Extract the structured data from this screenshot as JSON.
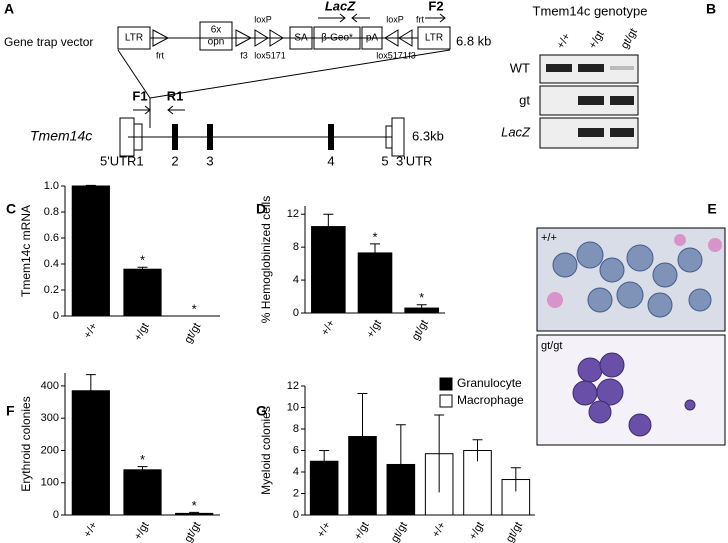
{
  "panel_a": {
    "label": "A",
    "labels": [
      "Gene trap vector",
      "LTR",
      "frt",
      "6x",
      "opn",
      "f3",
      "loxP",
      "lox5171",
      "SA",
      "LacZ",
      "β-Geo*",
      "pA",
      "loxP",
      "lox5171",
      "frt",
      "f3",
      "LTR",
      "F2",
      "6.8 kb",
      "F1",
      "R1",
      "Tmem14c",
      "6.3kb",
      "5'UTR",
      "1",
      "2",
      "3",
      "4",
      "5",
      "3'UTR"
    ]
  },
  "panel_b": {
    "label": "B",
    "title": "Tmem14c genotype",
    "columns": [
      "+/+",
      "+/gt",
      "gt/gt"
    ],
    "rows": [
      "WT",
      "gt",
      "LacZ"
    ]
  },
  "panel_e": {
    "label": "E",
    "images": [
      "+/+",
      "gt/gt"
    ]
  },
  "chart_data": [
    {
      "type": "bar",
      "panel": "C",
      "y_label": "Tmem14c mRNA",
      "categories": [
        "+/+",
        "+/gt",
        "gt/gt"
      ],
      "values": [
        1.0,
        0.36,
        0
      ],
      "errors": [
        0.005,
        0.015,
        0
      ],
      "significance": [
        null,
        "*",
        "*"
      ],
      "color": "#000000",
      "ylim": [
        0,
        1
      ],
      "yticks": [
        0,
        0.2,
        0.4,
        0.6,
        0.8,
        {
          "value": 1,
          "label": "1.0"
        }
      ]
    },
    {
      "type": "bar",
      "panel": "D",
      "y_label": "% Hemoglobinized cells",
      "categories": [
        "+/+",
        "+/gt",
        "gt/gt"
      ],
      "values": [
        10.5,
        7.3,
        0.6
      ],
      "errors": [
        1.5,
        1.1,
        0.4
      ],
      "significance": [
        null,
        "*",
        "*"
      ],
      "color": "#000000",
      "ylim": [
        0,
        13
      ],
      "yticks": [
        0,
        4,
        8,
        12
      ]
    },
    {
      "type": "bar",
      "panel": "F",
      "y_label": "Erythroid colonies",
      "categories": [
        "+/+",
        "+/gt",
        "gt/gt"
      ],
      "values": [
        385,
        140,
        5
      ],
      "errors": [
        50,
        10,
        3
      ],
      "significance": [
        null,
        "*",
        "*"
      ],
      "color": "#000000",
      "ylim": [
        0,
        440
      ],
      "yticks": [
        0,
        100,
        200,
        300,
        400
      ]
    },
    {
      "type": "bar",
      "panel": "G",
      "y_label": "Myeloid colonies",
      "categories": [
        "+/+",
        "+/gt",
        "gt/gt",
        "+/+",
        "+/gt",
        "gt/gt"
      ],
      "series": [
        {
          "name": "Granulocyte",
          "color": "#000000",
          "values": [
            5,
            7.3,
            4.7,
            null,
            null,
            null
          ],
          "errors": [
            1,
            4,
            3.7,
            null,
            null,
            null
          ]
        },
        {
          "name": "Macrophage",
          "color": "#ffffff",
          "values": [
            null,
            null,
            null,
            5.7,
            6,
            3.3
          ],
          "errors": [
            null,
            null,
            null,
            3.6,
            1,
            1.1
          ]
        }
      ],
      "ylim": [
        0,
        12
      ],
      "yticks": [
        0,
        2,
        4,
        6,
        8,
        10,
        12
      ],
      "legend": "top-right"
    }
  ]
}
